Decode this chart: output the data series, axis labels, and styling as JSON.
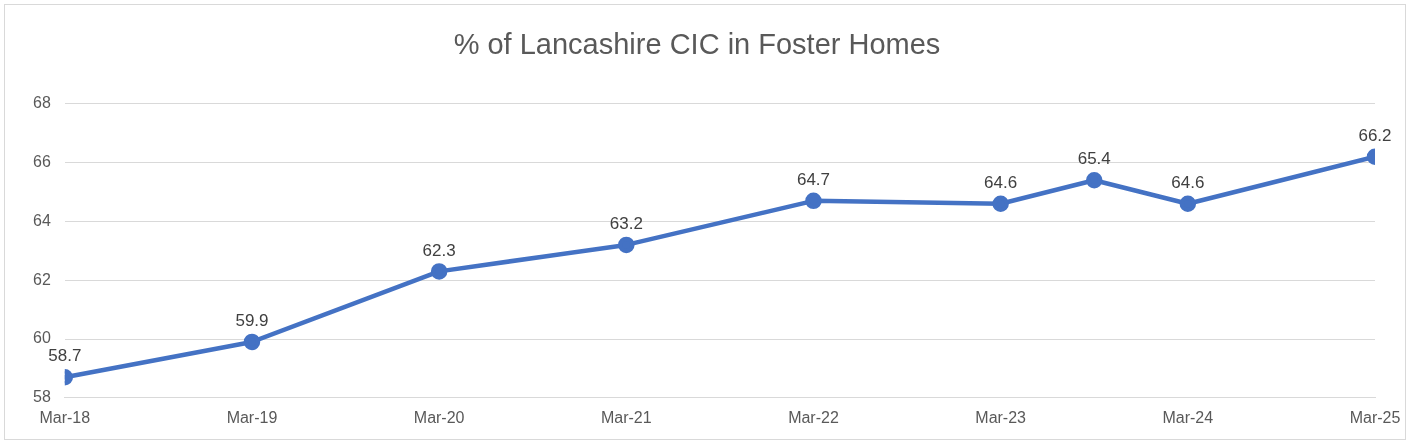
{
  "chart_data": {
    "type": "line",
    "title": "% of Lancashire CIC in Foster Homes",
    "x": [
      "2018-03",
      "2019-03",
      "2020-03",
      "2021-03",
      "2022-03",
      "2023-03",
      "2023-09",
      "2024-03",
      "2025-03"
    ],
    "series": [
      {
        "color": "#4472c4",
        "values": [
          58.7,
          59.9,
          62.3,
          63.2,
          64.7,
          64.6,
          65.4,
          64.6,
          66.2
        ]
      }
    ],
    "xlim": [
      "2018-03",
      "2025-03"
    ],
    "xticks": [
      {
        "value": "2018-03",
        "label": "Mar-18"
      },
      {
        "value": "2019-03",
        "label": "Mar-19"
      },
      {
        "value": "2020-03",
        "label": "Mar-20"
      },
      {
        "value": "2021-03",
        "label": "Mar-21"
      },
      {
        "value": "2022-03",
        "label": "Mar-22"
      },
      {
        "value": "2023-03",
        "label": "Mar-23"
      },
      {
        "value": "2024-03",
        "label": "Mar-24"
      },
      {
        "value": "2025-03",
        "label": "Mar-25"
      }
    ],
    "ylim": [
      58,
      68
    ],
    "yticks": [
      58,
      60,
      62,
      64,
      66,
      68
    ],
    "grid": "y",
    "legend": false,
    "marker": "circle",
    "line_style": "solid",
    "data_labels": true
  }
}
